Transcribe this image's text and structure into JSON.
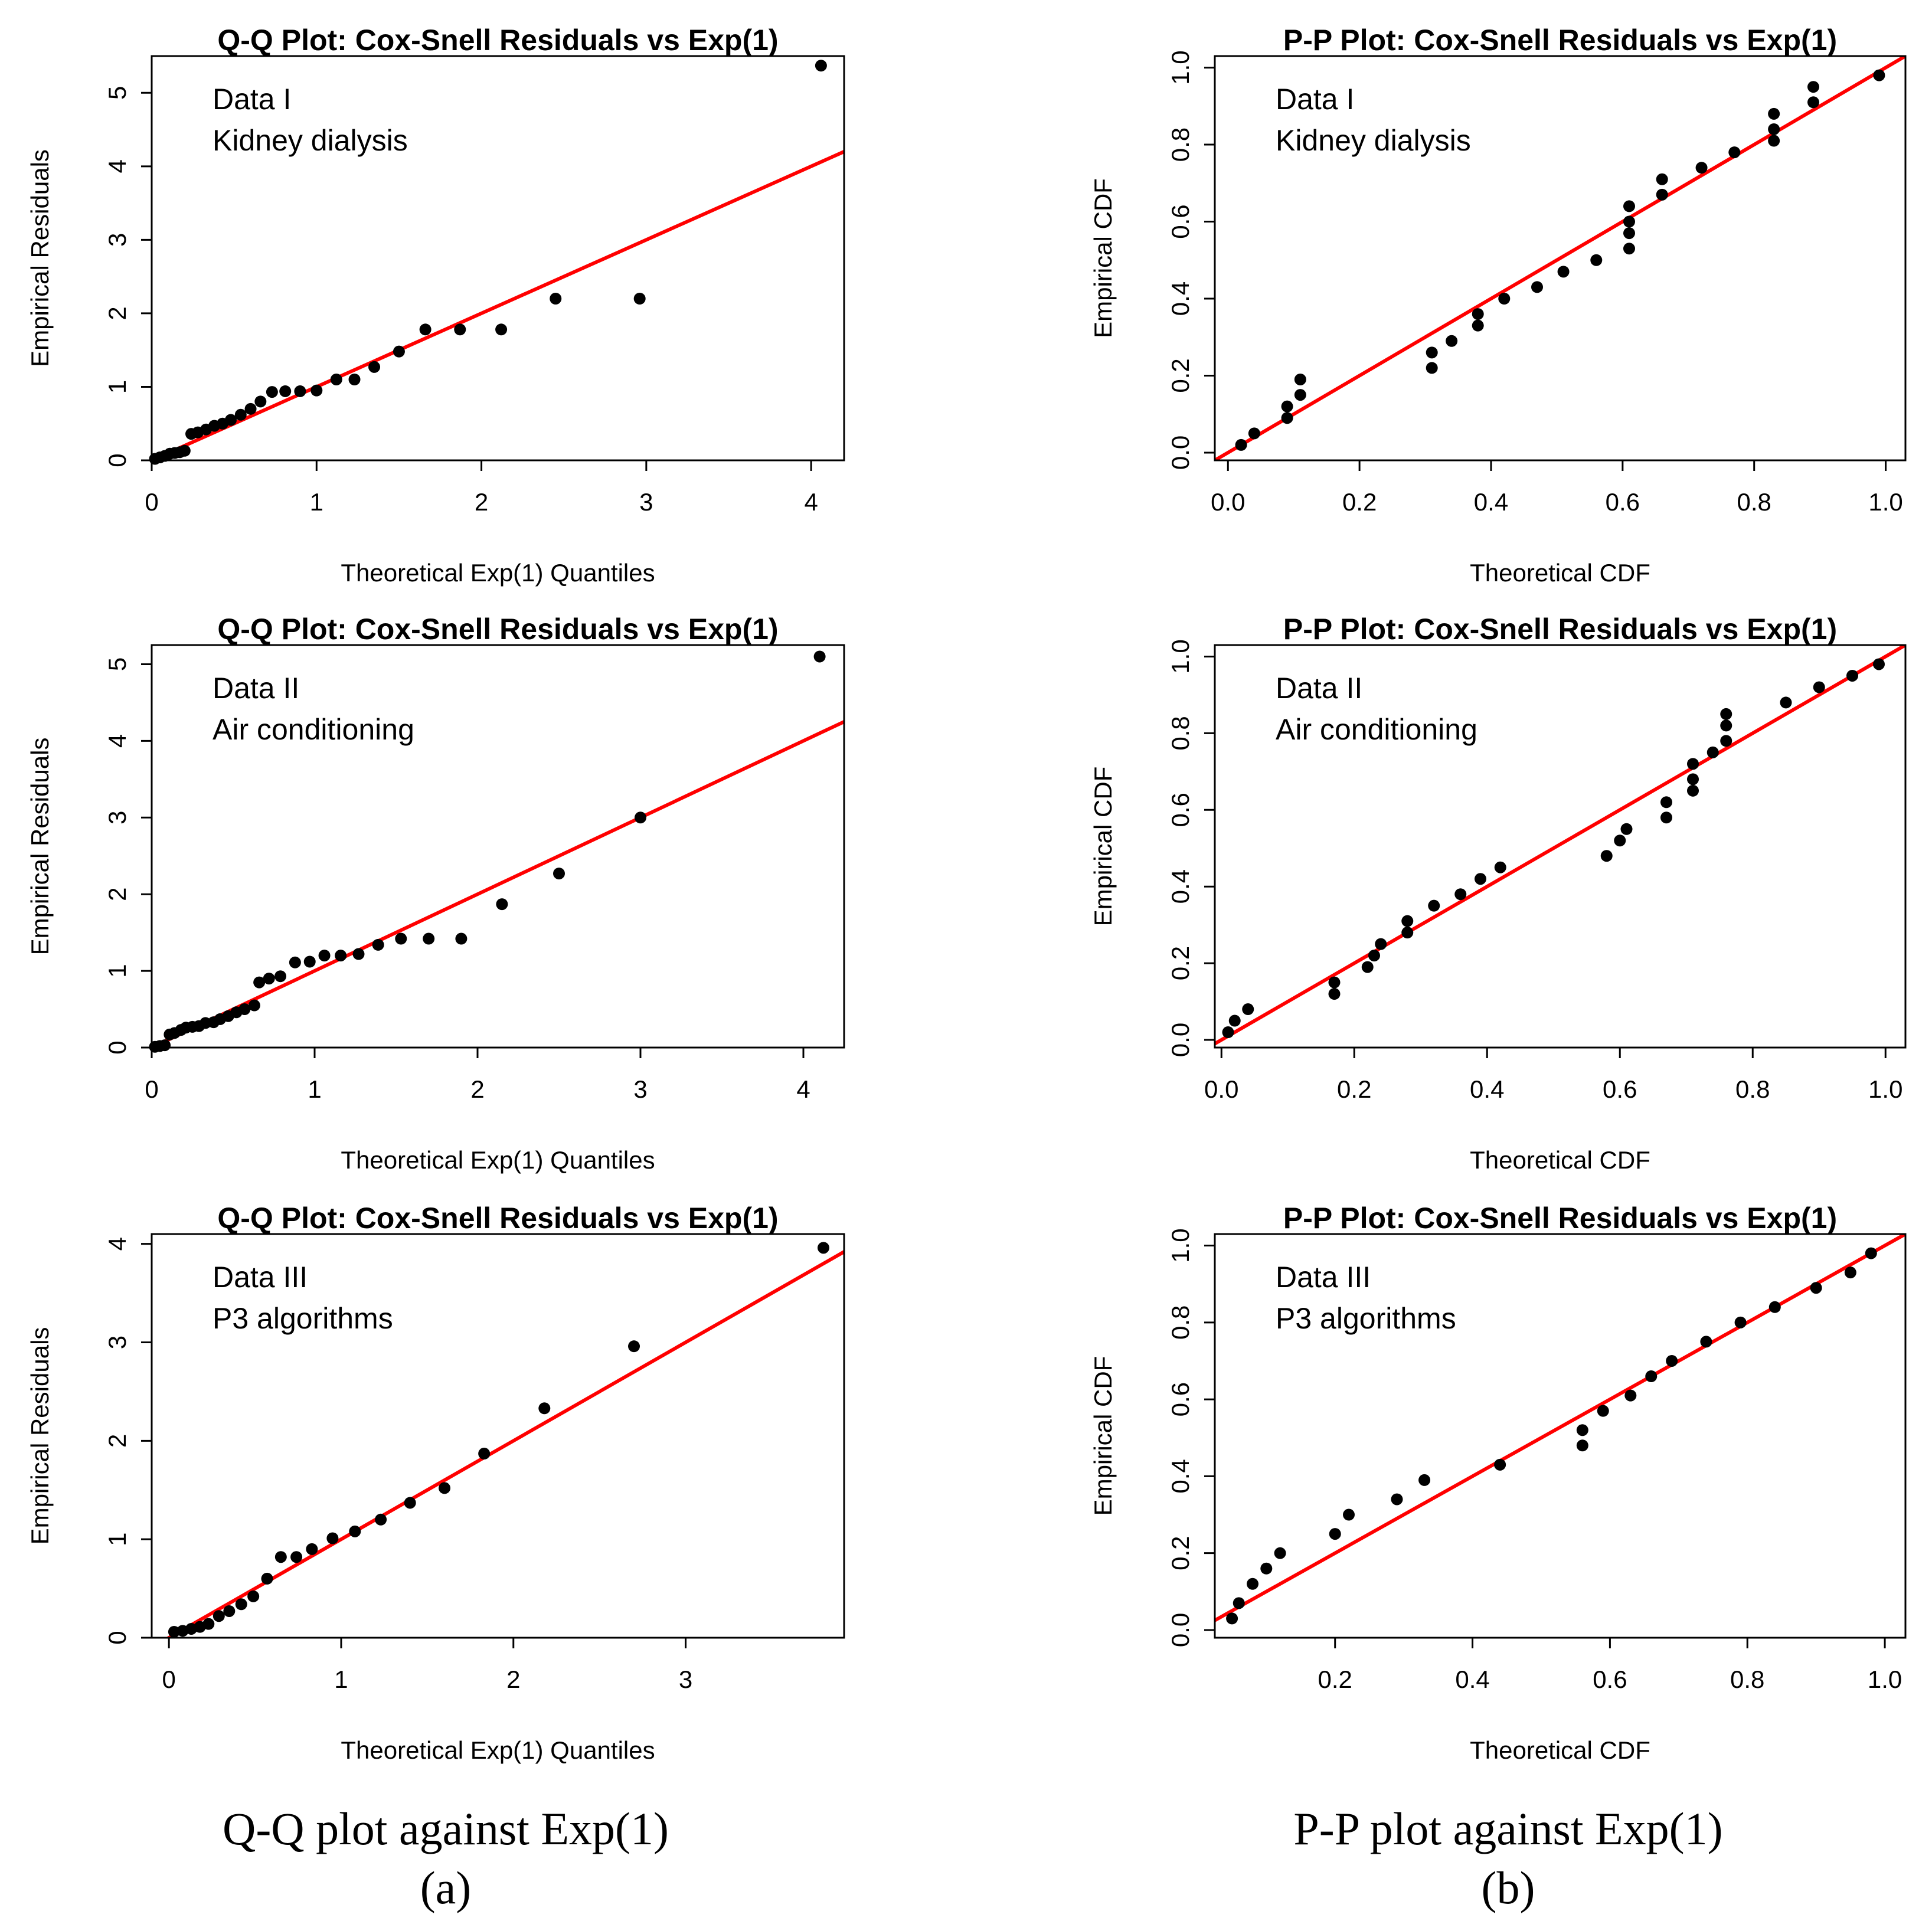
{
  "captions": {
    "a_title": "Q-Q plot against Exp(1)",
    "a_label": "(a)",
    "b_title": "P-P plot against Exp(1)",
    "b_label": "(b)"
  },
  "chart_data": [
    {
      "id": "qq1",
      "type": "scatter",
      "title": "Q-Q Plot: Cox-Snell Residuals vs Exp(1)",
      "xlabel": "Theoretical Exp(1) Quantiles",
      "ylabel": "Empirical Residuals",
      "annotation": [
        "Data I",
        "Kidney dialysis"
      ],
      "xlim": [
        0,
        4.2
      ],
      "ylim": [
        0,
        5.5
      ],
      "xticks": [
        0,
        1,
        2,
        3,
        4
      ],
      "yticks": [
        0,
        1,
        2,
        3,
        4,
        5
      ],
      "tick_decimals": 0,
      "ref_line": {
        "intercept": 0,
        "slope": 1
      },
      "points": [
        [
          0.02,
          0.02
        ],
        [
          0.05,
          0.04
        ],
        [
          0.08,
          0.06
        ],
        [
          0.11,
          0.09
        ],
        [
          0.14,
          0.1
        ],
        [
          0.17,
          0.11
        ],
        [
          0.2,
          0.13
        ],
        [
          0.24,
          0.36
        ],
        [
          0.28,
          0.38
        ],
        [
          0.33,
          0.42
        ],
        [
          0.38,
          0.47
        ],
        [
          0.43,
          0.5
        ],
        [
          0.48,
          0.55
        ],
        [
          0.54,
          0.62
        ],
        [
          0.6,
          0.7
        ],
        [
          0.66,
          0.8
        ],
        [
          0.73,
          0.93
        ],
        [
          0.81,
          0.94
        ],
        [
          0.9,
          0.94
        ],
        [
          1.0,
          0.95
        ],
        [
          1.12,
          1.1
        ],
        [
          1.23,
          1.1
        ],
        [
          1.35,
          1.27
        ],
        [
          1.5,
          1.48
        ],
        [
          1.66,
          1.78
        ],
        [
          1.87,
          1.78
        ],
        [
          2.12,
          1.78
        ],
        [
          2.45,
          2.2
        ],
        [
          2.96,
          2.2
        ],
        [
          4.06,
          5.37
        ]
      ]
    },
    {
      "id": "pp1",
      "type": "scatter",
      "title": "P-P Plot: Cox-Snell Residuals vs Exp(1)",
      "xlabel": "Theoretical CDF",
      "ylabel": "Empirical CDF",
      "annotation": [
        "Data I",
        "Kidney dialysis"
      ],
      "xlim": [
        -0.02,
        1.03
      ],
      "ylim": [
        -0.02,
        1.03
      ],
      "xticks": [
        0,
        0.2,
        0.4,
        0.6,
        0.8,
        1
      ],
      "yticks": [
        0,
        0.2,
        0.4,
        0.6,
        0.8,
        1
      ],
      "tick_decimals": 1,
      "ref_line": {
        "intercept": 0,
        "slope": 1
      },
      "points": [
        [
          0.02,
          0.02
        ],
        [
          0.04,
          0.05
        ],
        [
          0.09,
          0.09
        ],
        [
          0.09,
          0.12
        ],
        [
          0.11,
          0.15
        ],
        [
          0.11,
          0.19
        ],
        [
          0.31,
          0.22
        ],
        [
          0.31,
          0.26
        ],
        [
          0.34,
          0.29
        ],
        [
          0.38,
          0.33
        ],
        [
          0.38,
          0.36
        ],
        [
          0.42,
          0.4
        ],
        [
          0.47,
          0.43
        ],
        [
          0.51,
          0.47
        ],
        [
          0.56,
          0.5
        ],
        [
          0.61,
          0.53
        ],
        [
          0.61,
          0.57
        ],
        [
          0.61,
          0.6
        ],
        [
          0.61,
          0.64
        ],
        [
          0.66,
          0.67
        ],
        [
          0.66,
          0.71
        ],
        [
          0.72,
          0.74
        ],
        [
          0.77,
          0.78
        ],
        [
          0.83,
          0.81
        ],
        [
          0.83,
          0.84
        ],
        [
          0.83,
          0.88
        ],
        [
          0.89,
          0.91
        ],
        [
          0.89,
          0.95
        ],
        [
          0.99,
          0.98
        ]
      ]
    },
    {
      "id": "qq2",
      "type": "scatter",
      "title": "Q-Q Plot: Cox-Snell Residuals vs Exp(1)",
      "xlabel": "Theoretical Exp(1) Quantiles",
      "ylabel": "Empirical Residuals",
      "annotation": [
        "Data II",
        "Air conditioning"
      ],
      "xlim": [
        0,
        4.25
      ],
      "ylim": [
        0,
        5.25
      ],
      "xticks": [
        0,
        1,
        2,
        3,
        4
      ],
      "yticks": [
        0,
        1,
        2,
        3,
        4,
        5
      ],
      "tick_decimals": 0,
      "ref_line": {
        "intercept": 0,
        "slope": 1
      },
      "points": [
        [
          0.02,
          0.01
        ],
        [
          0.05,
          0.02
        ],
        [
          0.08,
          0.03
        ],
        [
          0.11,
          0.17
        ],
        [
          0.14,
          0.19
        ],
        [
          0.18,
          0.23
        ],
        [
          0.21,
          0.26
        ],
        [
          0.25,
          0.27
        ],
        [
          0.29,
          0.28
        ],
        [
          0.33,
          0.32
        ],
        [
          0.38,
          0.33
        ],
        [
          0.42,
          0.37
        ],
        [
          0.47,
          0.41
        ],
        [
          0.52,
          0.46
        ],
        [
          0.57,
          0.5
        ],
        [
          0.63,
          0.55
        ],
        [
          0.66,
          0.85
        ],
        [
          0.72,
          0.9
        ],
        [
          0.79,
          0.93
        ],
        [
          0.88,
          1.11
        ],
        [
          0.97,
          1.12
        ],
        [
          1.06,
          1.2
        ],
        [
          1.16,
          1.2
        ],
        [
          1.27,
          1.22
        ],
        [
          1.39,
          1.34
        ],
        [
          1.53,
          1.42
        ],
        [
          1.7,
          1.42
        ],
        [
          1.9,
          1.42
        ],
        [
          2.15,
          1.87
        ],
        [
          2.5,
          2.27
        ],
        [
          3.0,
          3.0
        ],
        [
          4.1,
          5.1
        ]
      ]
    },
    {
      "id": "pp2",
      "type": "scatter",
      "title": "P-P Plot: Cox-Snell Residuals vs Exp(1)",
      "xlabel": "Theoretical CDF",
      "ylabel": "Empirical CDF",
      "annotation": [
        "Data II",
        "Air conditioning"
      ],
      "xlim": [
        -0.01,
        1.03
      ],
      "ylim": [
        -0.02,
        1.03
      ],
      "xticks": [
        0,
        0.2,
        0.4,
        0.6,
        0.8,
        1
      ],
      "yticks": [
        0,
        0.2,
        0.4,
        0.6,
        0.8,
        1
      ],
      "tick_decimals": 1,
      "ref_line": {
        "intercept": 0,
        "slope": 1
      },
      "points": [
        [
          0.01,
          0.02
        ],
        [
          0.02,
          0.05
        ],
        [
          0.04,
          0.08
        ],
        [
          0.17,
          0.12
        ],
        [
          0.17,
          0.15
        ],
        [
          0.22,
          0.19
        ],
        [
          0.23,
          0.22
        ],
        [
          0.24,
          0.25
        ],
        [
          0.28,
          0.28
        ],
        [
          0.28,
          0.31
        ],
        [
          0.32,
          0.35
        ],
        [
          0.36,
          0.38
        ],
        [
          0.39,
          0.42
        ],
        [
          0.42,
          0.45
        ],
        [
          0.58,
          0.48
        ],
        [
          0.6,
          0.52
        ],
        [
          0.61,
          0.55
        ],
        [
          0.67,
          0.58
        ],
        [
          0.67,
          0.62
        ],
        [
          0.71,
          0.65
        ],
        [
          0.71,
          0.68
        ],
        [
          0.71,
          0.72
        ],
        [
          0.74,
          0.75
        ],
        [
          0.76,
          0.78
        ],
        [
          0.76,
          0.82
        ],
        [
          0.76,
          0.85
        ],
        [
          0.85,
          0.88
        ],
        [
          0.9,
          0.92
        ],
        [
          0.95,
          0.95
        ],
        [
          0.99,
          0.98
        ]
      ]
    },
    {
      "id": "qq3",
      "type": "scatter",
      "title": "Q-Q Plot: Cox-Snell Residuals vs Exp(1)",
      "xlabel": "Theoretical Exp(1) Quantiles",
      "ylabel": "Empirical Residuals",
      "annotation": [
        "Data III",
        "P3 algorithms"
      ],
      "xlim": [
        -0.1,
        3.92
      ],
      "ylim": [
        0,
        4.1
      ],
      "xticks": [
        0,
        1,
        2,
        3
      ],
      "yticks": [
        0,
        1,
        2,
        3,
        4
      ],
      "tick_decimals": 0,
      "ref_line": {
        "intercept": 0,
        "slope": 1
      },
      "points": [
        [
          0.03,
          0.06
        ],
        [
          0.08,
          0.07
        ],
        [
          0.13,
          0.09
        ],
        [
          0.18,
          0.11
        ],
        [
          0.23,
          0.14
        ],
        [
          0.29,
          0.22
        ],
        [
          0.35,
          0.27
        ],
        [
          0.42,
          0.34
        ],
        [
          0.49,
          0.42
        ],
        [
          0.57,
          0.6
        ],
        [
          0.65,
          0.82
        ],
        [
          0.74,
          0.82
        ],
        [
          0.83,
          0.9
        ],
        [
          0.95,
          1.01
        ],
        [
          1.08,
          1.08
        ],
        [
          1.23,
          1.2
        ],
        [
          1.4,
          1.37
        ],
        [
          1.6,
          1.52
        ],
        [
          1.83,
          1.87
        ],
        [
          2.18,
          2.33
        ],
        [
          2.7,
          2.96
        ],
        [
          3.8,
          3.96
        ]
      ]
    },
    {
      "id": "pp3",
      "type": "scatter",
      "title": "P-P Plot: Cox-Snell Residuals vs Exp(1)",
      "xlabel": "Theoretical CDF",
      "ylabel": "Empirical CDF",
      "annotation": [
        "Data III",
        "P3 algorithms"
      ],
      "xlim": [
        0.025,
        1.03
      ],
      "ylim": [
        -0.02,
        1.03
      ],
      "xticks": [
        0.2,
        0.4,
        0.6,
        0.8,
        1
      ],
      "yticks": [
        0,
        0.2,
        0.4,
        0.6,
        0.8,
        1
      ],
      "tick_decimals": 1,
      "ref_line": {
        "intercept": 0,
        "slope": 1
      },
      "points": [
        [
          0.05,
          0.03
        ],
        [
          0.06,
          0.07
        ],
        [
          0.08,
          0.12
        ],
        [
          0.1,
          0.16
        ],
        [
          0.12,
          0.2
        ],
        [
          0.2,
          0.25
        ],
        [
          0.22,
          0.3
        ],
        [
          0.29,
          0.34
        ],
        [
          0.33,
          0.39
        ],
        [
          0.44,
          0.43
        ],
        [
          0.56,
          0.48
        ],
        [
          0.56,
          0.52
        ],
        [
          0.59,
          0.57
        ],
        [
          0.63,
          0.61
        ],
        [
          0.66,
          0.66
        ],
        [
          0.69,
          0.7
        ],
        [
          0.74,
          0.75
        ],
        [
          0.79,
          0.8
        ],
        [
          0.84,
          0.84
        ],
        [
          0.9,
          0.89
        ],
        [
          0.95,
          0.93
        ],
        [
          0.98,
          0.98
        ]
      ]
    }
  ]
}
